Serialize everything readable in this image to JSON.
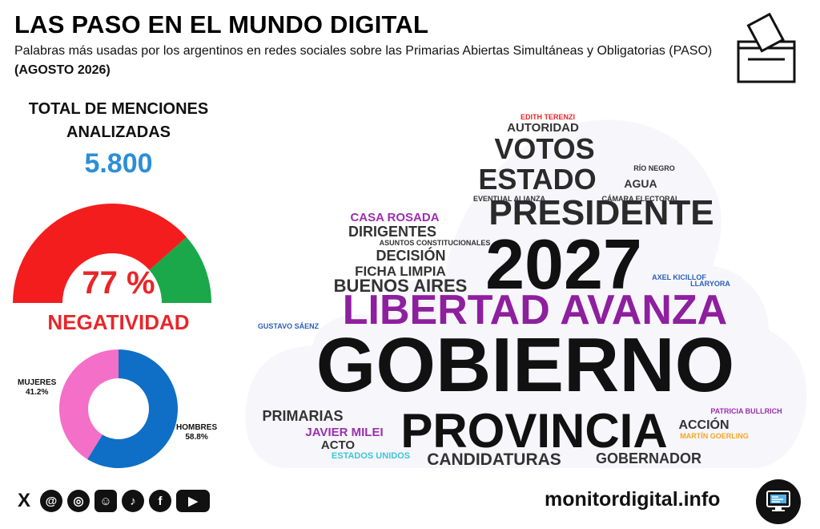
{
  "header": {
    "title": "LAS PASO EN EL MUNDO DIGITAL",
    "subtitle": "Palabras más usadas por los argentinos en redes sociales sobre las Primarias Abiertas Simultáneas y Obligatorias (PASO)",
    "period": "(AGOSTO 2026)"
  },
  "stats": {
    "label": "TOTAL DE MENCIONES ANALIZADAS",
    "total": "5.800"
  },
  "sentiment": {
    "percent_label": "77 %",
    "label": "NEGATIVIDAD",
    "negative_share": 0.77,
    "negative_color": "#f41d1d",
    "positive_color": "#1aa84b"
  },
  "gender": {
    "women": {
      "name": "MUJERES",
      "pct_label": "41.2%",
      "value": 41.2,
      "color": "#f36fc8"
    },
    "men": {
      "name": "HOMBRES",
      "pct_label": "58.8%",
      "value": 58.8,
      "color": "#0f6fc6"
    }
  },
  "chart_data": [
    {
      "type": "gauge",
      "values": [
        77,
        23
      ],
      "categories": [
        "negative",
        "positive"
      ],
      "label": "NEGATIVIDAD"
    },
    {
      "type": "pie",
      "categories": [
        "MUJERES",
        "HOMBRES"
      ],
      "values": [
        41.2,
        58.8
      ]
    }
  ],
  "wordcloud": [
    {
      "text": "EDITH TERENZI",
      "color": "#e8262a"
    },
    {
      "text": "AUTORIDAD",
      "color": "#333333"
    },
    {
      "text": "VOTOS",
      "color": "#2a2a2a"
    },
    {
      "text": "RÍO NEGRO",
      "color": "#333333"
    },
    {
      "text": "ESTADO",
      "color": "#2a2a2a"
    },
    {
      "text": "AGUA",
      "color": "#333333"
    },
    {
      "text": "EVENTUAL ALIANZA",
      "color": "#333333"
    },
    {
      "text": "CÁMARA ELECTORAL",
      "color": "#333333"
    },
    {
      "text": "CASA ROSADA",
      "color": "#9b2fae"
    },
    {
      "text": "PRESIDENTE",
      "color": "#2a2a2a"
    },
    {
      "text": "DIRIGENTES",
      "color": "#333333"
    },
    {
      "text": "ASUNTOS CONSTITUCIONALES",
      "color": "#333333"
    },
    {
      "text": "2027",
      "color": "#111111"
    },
    {
      "text": "DECISIÓN",
      "color": "#333333"
    },
    {
      "text": "FICHA LIMPIA",
      "color": "#333333"
    },
    {
      "text": "AXEL KICILLOF",
      "color": "#2b5fb5"
    },
    {
      "text": "LLARYORA",
      "color": "#2b5fb5"
    },
    {
      "text": "BUENOS AIRES",
      "color": "#333333"
    },
    {
      "text": "LIBERTAD AVANZA",
      "color": "#8e1f9e"
    },
    {
      "text": "GUSTAVO SÁENZ",
      "color": "#2b5fb5"
    },
    {
      "text": "GOBIERNO",
      "color": "#111111"
    },
    {
      "text": "PATRICIA BULLRICH",
      "color": "#9b2fae"
    },
    {
      "text": "PRIMARIAS",
      "color": "#333333"
    },
    {
      "text": "ACCIÓN",
      "color": "#333333"
    },
    {
      "text": "PROVINCIA",
      "color": "#111111"
    },
    {
      "text": "JAVIER MILEI",
      "color": "#9b2fae"
    },
    {
      "text": "MARTÍN GOERLING",
      "color": "#f4a623"
    },
    {
      "text": "ACTO",
      "color": "#333333"
    },
    {
      "text": "ESTADOS UNIDOS",
      "color": "#3bc7d9"
    },
    {
      "text": "CANDIDATURAS",
      "color": "#333333"
    },
    {
      "text": "GOBERNADOR",
      "color": "#333333"
    }
  ],
  "social": [
    {
      "name": "x-icon",
      "glyph": "X"
    },
    {
      "name": "threads-icon",
      "glyph": "@"
    },
    {
      "name": "instagram-icon",
      "glyph": "◎"
    },
    {
      "name": "reddit-icon",
      "glyph": "☺"
    },
    {
      "name": "tiktok-icon",
      "glyph": "♪"
    },
    {
      "name": "facebook-icon",
      "glyph": "f"
    },
    {
      "name": "youtube-icon",
      "glyph": "▶"
    }
  ],
  "footer": {
    "site": "monitordigital.info"
  }
}
